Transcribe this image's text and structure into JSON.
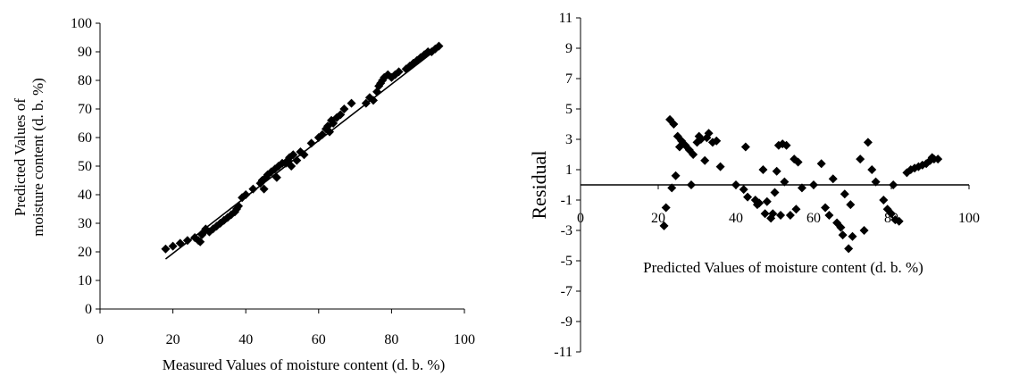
{
  "chart_data": [
    {
      "type": "scatter",
      "xlabel": "Measured Values of moisture content (d. b. %)",
      "ylabel_line1": "Predicted Values of",
      "ylabel_line2": "moisture content (d. b. %)",
      "xlim": [
        0,
        100
      ],
      "ylim": [
        0,
        100
      ],
      "xticks": [
        0,
        20,
        40,
        60,
        80,
        100
      ],
      "yticks": [
        0,
        10,
        20,
        30,
        40,
        50,
        60,
        70,
        80,
        90,
        100
      ],
      "grid": false,
      "legend": "none",
      "marker": "diamond",
      "marker_color": "#000000",
      "series": [
        {
          "points": [
            [
              18,
              21
            ],
            [
              20,
              22
            ],
            [
              22,
              23
            ],
            [
              24,
              24
            ],
            [
              26,
              25
            ],
            [
              27,
              24
            ],
            [
              27.5,
              23.5
            ],
            [
              28,
              26
            ],
            [
              28.5,
              27
            ],
            [
              29,
              28
            ],
            [
              30,
              27
            ],
            [
              31,
              28
            ],
            [
              32,
              29
            ],
            [
              33,
              30
            ],
            [
              34,
              31
            ],
            [
              35,
              32
            ],
            [
              36,
              33
            ],
            [
              37,
              34
            ],
            [
              37.5,
              35
            ],
            [
              38,
              36
            ],
            [
              39,
              39
            ],
            [
              40,
              40
            ],
            [
              42,
              42
            ],
            [
              44,
              44
            ],
            [
              44.5,
              45
            ],
            [
              45,
              42
            ],
            [
              45.5,
              46
            ],
            [
              46,
              47
            ],
            [
              47,
              48
            ],
            [
              48,
              49
            ],
            [
              48.5,
              46
            ],
            [
              49,
              50
            ],
            [
              50,
              51
            ],
            [
              51,
              51
            ],
            [
              51.5,
              52
            ],
            [
              52,
              53
            ],
            [
              52.5,
              50
            ],
            [
              53,
              54
            ],
            [
              54,
              52
            ],
            [
              55,
              55
            ],
            [
              56,
              54
            ],
            [
              58,
              58
            ],
            [
              60,
              60
            ],
            [
              61,
              61
            ],
            [
              62,
              63
            ],
            [
              62.5,
              64
            ],
            [
              63,
              62
            ],
            [
              63.5,
              66
            ],
            [
              64,
              65
            ],
            [
              65,
              67
            ],
            [
              66,
              68
            ],
            [
              67,
              70
            ],
            [
              69,
              72
            ],
            [
              73,
              72
            ],
            [
              74,
              74
            ],
            [
              75,
              73
            ],
            [
              76,
              76
            ],
            [
              76.5,
              78
            ],
            [
              77,
              79
            ],
            [
              77.5,
              80
            ],
            [
              78,
              81
            ],
            [
              79,
              82
            ],
            [
              80,
              81
            ],
            [
              81,
              82
            ],
            [
              82,
              83
            ],
            [
              84,
              84
            ],
            [
              85,
              85
            ],
            [
              86,
              86
            ],
            [
              87,
              87
            ],
            [
              88,
              88
            ],
            [
              89,
              89
            ],
            [
              90,
              90
            ],
            [
              91,
              90
            ],
            [
              92,
              91
            ],
            [
              93,
              92
            ]
          ]
        },
        {
          "type": "line",
          "x": [
            18,
            93
          ],
          "y": [
            17.5,
            91.5
          ]
        }
      ]
    },
    {
      "type": "scatter",
      "xlabel": "Predicted Values of moisture content (d. b. %)",
      "ylabel": "Residual",
      "xlim": [
        0,
        100
      ],
      "ylim": [
        -11,
        11
      ],
      "xticks": [
        0,
        20,
        40,
        60,
        80,
        100
      ],
      "yticks": [
        -11,
        -9,
        -7,
        -5,
        -3,
        -1,
        1,
        3,
        5,
        7,
        9,
        11
      ],
      "grid": false,
      "legend": "none",
      "marker": "diamond",
      "marker_color": "#000000",
      "series": [
        {
          "points": [
            [
              21.5,
              -2.7
            ],
            [
              22,
              -1.5
            ],
            [
              23,
              4.3
            ],
            [
              23.5,
              -0.2
            ],
            [
              24,
              4
            ],
            [
              24.5,
              0.6
            ],
            [
              25,
              3.2
            ],
            [
              25.5,
              2.5
            ],
            [
              26,
              2.9
            ],
            [
              27,
              2.6
            ],
            [
              28,
              2.3
            ],
            [
              28.5,
              0
            ],
            [
              29,
              2
            ],
            [
              30,
              2.8
            ],
            [
              30.5,
              3.2
            ],
            [
              31,
              3
            ],
            [
              32,
              1.6
            ],
            [
              32.5,
              3.1
            ],
            [
              33,
              3.4
            ],
            [
              34,
              2.8
            ],
            [
              35,
              2.9
            ],
            [
              36,
              1.2
            ],
            [
              40,
              0
            ],
            [
              42,
              -0.3
            ],
            [
              42.5,
              2.5
            ],
            [
              43,
              -0.8
            ],
            [
              45,
              -1
            ],
            [
              45.5,
              -1.3
            ],
            [
              46,
              -1.2
            ],
            [
              47,
              1
            ],
            [
              47.5,
              -1.9
            ],
            [
              48,
              -1.1
            ],
            [
              49,
              -2.2
            ],
            [
              49.5,
              -1.9
            ],
            [
              50,
              -0.5
            ],
            [
              50.5,
              0.9
            ],
            [
              51,
              2.6
            ],
            [
              51.5,
              -2
            ],
            [
              52,
              2.7
            ],
            [
              52.5,
              0.2
            ],
            [
              53,
              2.6
            ],
            [
              54,
              -2
            ],
            [
              55,
              1.7
            ],
            [
              55.5,
              -1.6
            ],
            [
              56,
              1.5
            ],
            [
              57,
              -0.2
            ],
            [
              60,
              0
            ],
            [
              62,
              1.4
            ],
            [
              63,
              -1.5
            ],
            [
              64,
              -2
            ],
            [
              65,
              0.4
            ],
            [
              66,
              -2.5
            ],
            [
              67,
              -2.8
            ],
            [
              67.5,
              -3.3
            ],
            [
              68,
              -0.6
            ],
            [
              69,
              -4.2
            ],
            [
              69.5,
              -1.3
            ],
            [
              70,
              -3.4
            ],
            [
              72,
              1.7
            ],
            [
              73,
              -3
            ],
            [
              74,
              2.8
            ],
            [
              75,
              1
            ],
            [
              76,
              0.2
            ],
            [
              78,
              -1
            ],
            [
              79,
              -1.6
            ],
            [
              80,
              -1.9
            ],
            [
              80.5,
              0
            ],
            [
              81,
              -2.3
            ],
            [
              82,
              -2.4
            ],
            [
              84,
              0.8
            ],
            [
              85,
              1
            ],
            [
              86,
              1.1
            ],
            [
              87,
              1.2
            ],
            [
              88,
              1.3
            ],
            [
              89,
              1.4
            ],
            [
              90,
              1.6
            ],
            [
              90.5,
              1.8
            ],
            [
              91,
              1.7
            ],
            [
              92,
              1.7
            ]
          ]
        }
      ]
    }
  ]
}
